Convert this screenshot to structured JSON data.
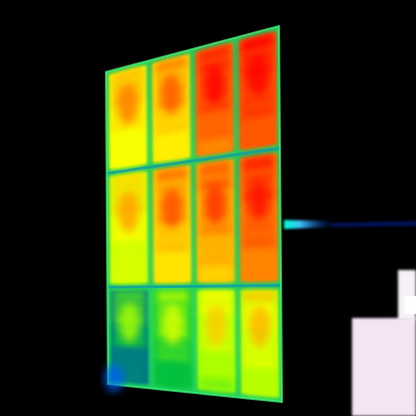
{
  "scene": {
    "kind": "thermal-image",
    "subject": "solar-panel-array",
    "background_color": "#000000",
    "palette": [
      "#0000ff",
      "#00c040",
      "#9aff00",
      "#ffff00",
      "#ffa500",
      "#ff4000",
      "#ff0000",
      "#ffffff"
    ],
    "panel_grid": {
      "rows": 3,
      "cols": 4,
      "cells": [
        {
          "row": 0,
          "col": 0,
          "heat": 0.66
        },
        {
          "row": 0,
          "col": 1,
          "heat": 0.72
        },
        {
          "row": 0,
          "col": 2,
          "heat": 0.93
        },
        {
          "row": 0,
          "col": 3,
          "heat": 0.97
        },
        {
          "row": 1,
          "col": 0,
          "heat": 0.6
        },
        {
          "row": 1,
          "col": 1,
          "heat": 0.74
        },
        {
          "row": 1,
          "col": 2,
          "heat": 0.8
        },
        {
          "row": 1,
          "col": 3,
          "heat": 0.9
        },
        {
          "row": 2,
          "col": 0,
          "heat": 0.28
        },
        {
          "row": 2,
          "col": 1,
          "heat": 0.36
        },
        {
          "row": 2,
          "col": 2,
          "heat": 0.52
        },
        {
          "row": 2,
          "col": 3,
          "heat": 0.56
        }
      ]
    },
    "features": [
      "mounting-pole",
      "warm-object-bottom-right"
    ]
  }
}
